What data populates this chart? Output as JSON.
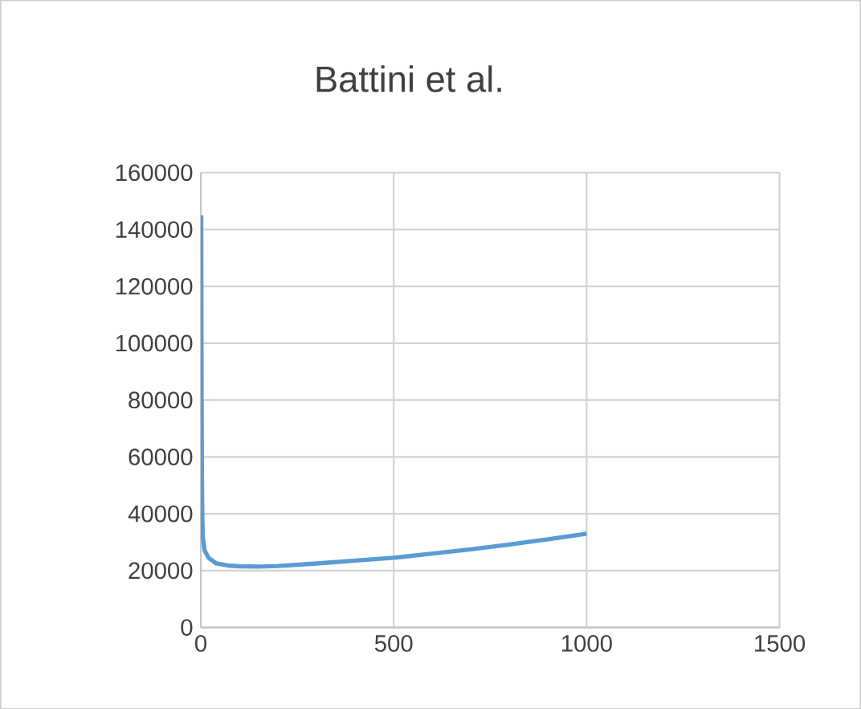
{
  "chart_data": {
    "type": "line",
    "title": "Battini et al.",
    "series": [
      {
        "color": "#5b9bd5",
        "x": [
          1,
          2,
          3,
          4,
          5,
          10,
          20,
          40,
          70,
          100,
          150,
          200,
          300,
          400,
          500,
          600,
          700,
          800,
          900,
          1000
        ],
        "values": [
          145000,
          80000,
          50000,
          38000,
          32000,
          27000,
          24500,
          22500,
          21800,
          21500,
          21400,
          21600,
          22500,
          23500,
          24500,
          26000,
          27500,
          29200,
          31000,
          33000
        ]
      }
    ],
    "xlim": [
      0,
      1500
    ],
    "xticks": [
      0,
      500,
      1000,
      1500
    ],
    "ylim": [
      0,
      160000
    ],
    "yticks": [
      0,
      20000,
      40000,
      60000,
      80000,
      100000,
      120000,
      140000,
      160000
    ],
    "grid": true,
    "marker": "none",
    "line_style": "solid"
  }
}
